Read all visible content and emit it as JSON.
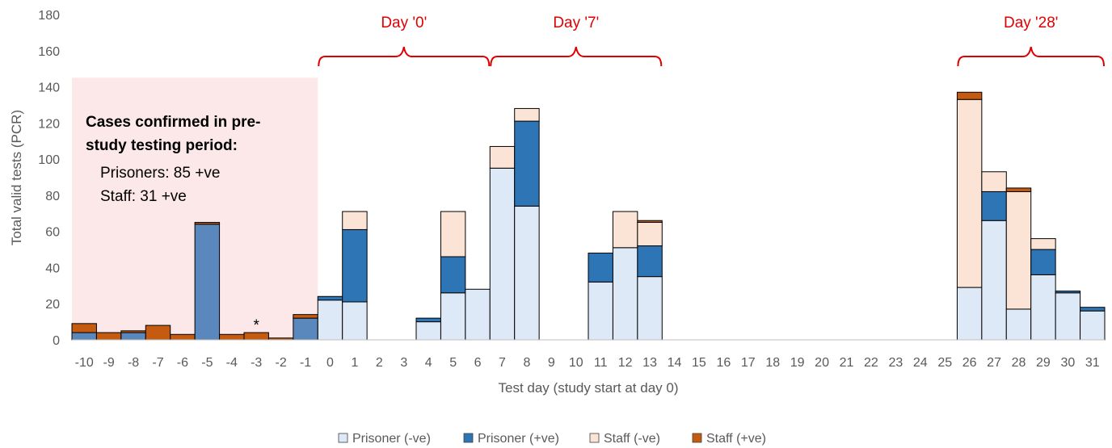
{
  "chart_data": {
    "type": "bar",
    "stacked": true,
    "xlabel": "Test day (study start at day 0)",
    "ylabel": "Total valid tests (PCR)",
    "ylim": [
      0,
      180
    ],
    "yticks": [
      0,
      20,
      40,
      60,
      80,
      100,
      120,
      140,
      160,
      180
    ],
    "grid": false,
    "legend_position": "bottom",
    "categories": [
      "-10",
      "-9",
      "-8",
      "-7",
      "-6",
      "-5",
      "-4",
      "-3",
      "-2",
      "-1",
      "0",
      "1",
      "2",
      "3",
      "4",
      "5",
      "6",
      "7",
      "8",
      "9",
      "10",
      "11",
      "12",
      "13",
      "14",
      "15",
      "16",
      "17",
      "18",
      "19",
      "20",
      "21",
      "22",
      "23",
      "24",
      "25",
      "26",
      "27",
      "28",
      "29",
      "30",
      "31"
    ],
    "series": [
      {
        "name": "Prisoner (-ve)",
        "color": "#dde9f6",
        "values": [
          0,
          0,
          0,
          0,
          0,
          0,
          0,
          0,
          0,
          0,
          22,
          21,
          0,
          0,
          10,
          26,
          28,
          95,
          74,
          0,
          0,
          32,
          51,
          35,
          0,
          0,
          0,
          0,
          0,
          0,
          0,
          0,
          0,
          0,
          0,
          0,
          29,
          66,
          17,
          36,
          26,
          16
        ]
      },
      {
        "name": "Prisoner (+ve)",
        "color": "#2e75b6",
        "values": [
          4,
          0,
          4,
          0,
          0,
          64,
          0,
          0,
          0,
          12,
          2,
          40,
          0,
          0,
          2,
          20,
          0,
          0,
          47,
          0,
          0,
          16,
          0,
          17,
          0,
          0,
          0,
          0,
          0,
          0,
          0,
          0,
          0,
          0,
          0,
          0,
          0,
          16,
          0,
          14,
          1,
          2
        ]
      },
      {
        "name": "Staff (-ve)",
        "color": "#fbe4d5",
        "values": [
          0,
          0,
          0,
          0,
          0,
          0,
          0,
          0,
          0,
          0,
          0,
          10,
          0,
          0,
          0,
          25,
          0,
          12,
          7,
          0,
          0,
          0,
          20,
          13,
          0,
          0,
          0,
          0,
          0,
          0,
          0,
          0,
          0,
          0,
          0,
          0,
          104,
          11,
          65,
          6,
          0,
          0
        ]
      },
      {
        "name": "Staff (+ve)",
        "color": "#c55a11",
        "values": [
          5,
          4,
          1,
          8,
          3,
          1,
          3,
          4,
          1,
          2,
          0,
          0,
          0,
          0,
          0,
          0,
          0,
          0,
          0,
          0,
          0,
          0,
          0,
          1,
          0,
          0,
          0,
          0,
          0,
          0,
          0,
          0,
          0,
          0,
          0,
          0,
          4,
          0,
          2,
          0,
          0,
          0
        ]
      }
    ],
    "pre_study_days": [
      "-10",
      "-9",
      "-8",
      "-7",
      "-6",
      "-5",
      "-4",
      "-3",
      "-2",
      "-1"
    ],
    "pre_study_shading": {
      "range": [
        "-10",
        "-1"
      ],
      "top_value": 145,
      "color": "#fce8e8"
    },
    "annotations": {
      "title_lines": [
        "Cases confirmed in pre-",
        "study testing period:"
      ],
      "detail_lines": [
        "Prisoners: 85 +ve",
        "Staff: 31 +ve"
      ],
      "asterisk": {
        "text": "*",
        "category": "-3"
      }
    },
    "brackets": [
      {
        "label": "Day '0'",
        "from": "0",
        "to": "6"
      },
      {
        "label": "Day '7'",
        "from": "7",
        "to": "13"
      },
      {
        "label": "Day '28'",
        "from": "26",
        "to": "31"
      }
    ],
    "bracket_color": "#e00000"
  }
}
